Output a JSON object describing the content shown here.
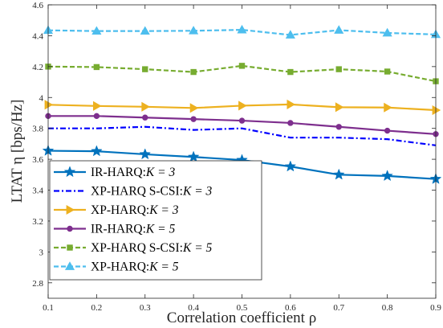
{
  "chart_data": {
    "type": "line",
    "xlabel": "Correlation coefficient ρ",
    "ylabel": "LTAT η [bps/Hz]",
    "xlim": [
      0.1,
      0.9
    ],
    "ylim": [
      2.7,
      4.6
    ],
    "xticks": [
      0.1,
      0.2,
      0.3,
      0.4,
      0.5,
      0.6,
      0.7,
      0.8,
      0.9
    ],
    "xtick_labels": [
      "0.1",
      "0.2",
      "0.3",
      "0.4",
      "0.5",
      "0.6",
      "0.7",
      "0.8",
      "0.9"
    ],
    "yticks": [
      2.8,
      3.0,
      3.2,
      3.4,
      3.6,
      3.8,
      4.0,
      4.2,
      4.4,
      4.6
    ],
    "ytick_labels": [
      "2.8",
      "3",
      "3.2",
      "3.4",
      "3.6",
      "3.8",
      "4",
      "4.2",
      "4.4",
      "4.6"
    ],
    "grid": false,
    "legend_position": "bottom-left",
    "x": [
      0.1,
      0.2,
      0.3,
      0.4,
      0.5,
      0.6,
      0.7,
      0.8,
      0.9
    ],
    "series": [
      {
        "name": "IR-HARQ:K = 3",
        "legend_label": "IR-HARQ:",
        "legend_math": "K = 3",
        "color": "#0072BD",
        "dash": "solid",
        "marker": "star",
        "values": [
          3.655,
          3.652,
          3.632,
          3.615,
          3.595,
          3.553,
          3.5,
          3.492,
          3.472
        ]
      },
      {
        "name": "XP-HARQ S-CSI:K = 3",
        "legend_label": "XP-HARQ S-CSI:",
        "legend_math": "K = 3",
        "color": "#0000FF",
        "dash": "dashdot",
        "marker": "none",
        "values": [
          3.8,
          3.8,
          3.81,
          3.79,
          3.8,
          3.74,
          3.74,
          3.73,
          3.69
        ]
      },
      {
        "name": "XP-HARQ:K = 3",
        "legend_label": "XP-HARQ:",
        "legend_math": "K = 3",
        "color": "#EDB120",
        "dash": "solid",
        "marker": "triangle-right",
        "values": [
          3.953,
          3.945,
          3.94,
          3.932,
          3.947,
          3.955,
          3.937,
          3.935,
          3.918
        ]
      },
      {
        "name": "IR-HARQ:K = 5",
        "legend_label": "IR-HARQ:",
        "legend_math": "K = 5",
        "color": "#7E2F8E",
        "dash": "solid",
        "marker": "circle",
        "values": [
          3.88,
          3.88,
          3.87,
          3.86,
          3.85,
          3.835,
          3.81,
          3.785,
          3.763
        ]
      },
      {
        "name": "XP-HARQ S-CSI:K = 5",
        "legend_label": "XP-HARQ S-CSI:",
        "legend_math": "K = 5",
        "color": "#77AC30",
        "dash": "dashed",
        "marker": "square",
        "values": [
          4.2,
          4.197,
          4.183,
          4.165,
          4.205,
          4.165,
          4.183,
          4.168,
          4.105
        ]
      },
      {
        "name": "XP-HARQ:K = 5",
        "legend_label": "XP-HARQ:",
        "legend_math": "K = 5",
        "color": "#4DBEEE",
        "dash": "dashed",
        "marker": "triangle-up",
        "values": [
          4.435,
          4.43,
          4.43,
          4.432,
          4.438,
          4.405,
          4.436,
          4.418,
          4.408
        ]
      }
    ]
  }
}
